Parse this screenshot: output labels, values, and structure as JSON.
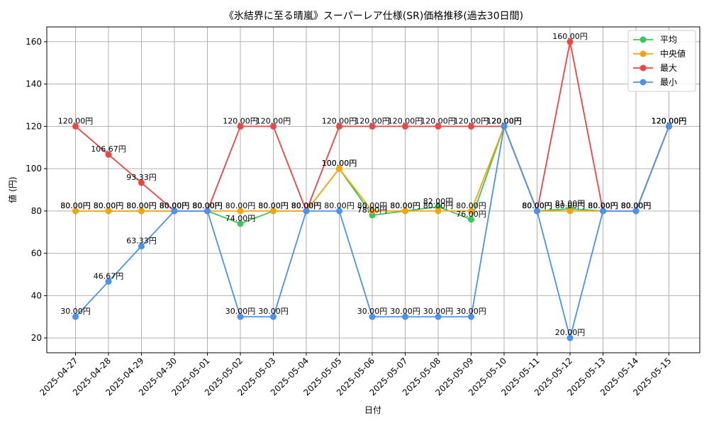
{
  "chart_data": {
    "type": "line",
    "title": "《氷結界に至る晴嵐》スーパーレア仕様(SR)価格推移(過去30日間)",
    "xlabel": "日付",
    "ylabel": "値 (円)",
    "categories": [
      "2025-04-27",
      "2025-04-28",
      "2025-04-29",
      "2025-04-30",
      "2025-05-01",
      "2025-05-02",
      "2025-05-03",
      "2025-05-04",
      "2025-05-05",
      "2025-05-06",
      "2025-05-07",
      "2025-05-08",
      "2025-05-09",
      "2025-05-10",
      "2025-05-11",
      "2025-05-12",
      "2025-05-13",
      "2025-05-14",
      "2025-05-15"
    ],
    "ylim": [
      13,
      167
    ],
    "yticks": [
      20,
      40,
      60,
      80,
      100,
      120,
      140,
      160
    ],
    "grid": true,
    "legend_position": "top-right",
    "label_suffix": "円",
    "series": [
      {
        "name": "平均",
        "color": "#3cc55a",
        "values": [
          80,
          80,
          80,
          80,
          80,
          74,
          80,
          80,
          100,
          78,
          80,
          82,
          76,
          120,
          80,
          81,
          80,
          80,
          120
        ]
      },
      {
        "name": "中央値",
        "color": "#f5a50b",
        "values": [
          80,
          80,
          80,
          80,
          80,
          80,
          80,
          80,
          100,
          80,
          80,
          80,
          80,
          120,
          80,
          80,
          80,
          80,
          120
        ]
      },
      {
        "name": "最大",
        "color": "#ee4444",
        "values": [
          120,
          106.67,
          93.33,
          80,
          80,
          120,
          120,
          80,
          120,
          120,
          120,
          120,
          120,
          120,
          80,
          160,
          80,
          80,
          120
        ]
      },
      {
        "name": "最小",
        "color": "#4a92f0",
        "values": [
          30,
          46.67,
          63.33,
          80,
          80,
          30,
          30,
          80,
          80,
          30,
          30,
          30,
          30,
          120,
          80,
          20,
          80,
          80,
          120
        ]
      }
    ]
  }
}
